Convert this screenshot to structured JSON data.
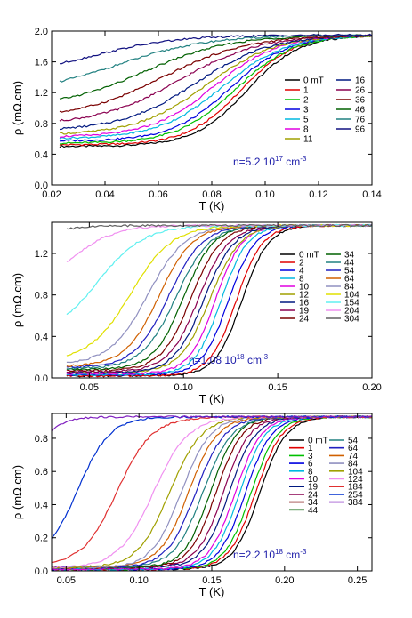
{
  "chart_data": [
    {
      "type": "line",
      "panel": "top",
      "xlabel": "T (K)",
      "ylabel": "ρ (mΩ.cm)",
      "xlim": [
        0.02,
        0.14
      ],
      "ylim": [
        0.0,
        2.0
      ],
      "xticks": [
        "0.02",
        "0.04",
        "0.06",
        "0.08",
        "0.10",
        "0.12",
        "0.14"
      ],
      "yticks": [
        "0.0",
        "0.4",
        "0.8",
        "1.2",
        "1.6",
        "2.0"
      ],
      "annotation": {
        "base": "n=5.2 10",
        "sup": "17",
        "tail": " cm",
        "sup2": "-3"
      },
      "legend_placement": "right",
      "x_start": 0.023,
      "x_end": 0.14,
      "rho_max": 1.95,
      "series": [
        {
          "name": "0 mT",
          "color": "#000000",
          "rho_low": 0.5,
          "tc": 0.093,
          "w": 0.01
        },
        {
          "name": "1",
          "color": "#e00000",
          "rho_low": 0.52,
          "tc": 0.091,
          "w": 0.01
        },
        {
          "name": "2",
          "color": "#00c000",
          "rho_low": 0.54,
          "tc": 0.089,
          "w": 0.011
        },
        {
          "name": "3",
          "color": "#0000e0",
          "rho_low": 0.57,
          "tc": 0.087,
          "w": 0.011
        },
        {
          "name": "5",
          "color": "#00b8e0",
          "rho_low": 0.6,
          "tc": 0.084,
          "w": 0.012
        },
        {
          "name": "8",
          "color": "#e000e0",
          "rho_low": 0.62,
          "tc": 0.081,
          "w": 0.012
        },
        {
          "name": "11",
          "color": "#a0a000",
          "rho_low": 0.65,
          "tc": 0.078,
          "w": 0.013
        },
        {
          "name": "16",
          "color": "#001880",
          "rho_low": 0.7,
          "tc": 0.074,
          "w": 0.014
        },
        {
          "name": "26",
          "color": "#8a0050",
          "rho_low": 0.78,
          "tc": 0.068,
          "w": 0.015
        },
        {
          "name": "36",
          "color": "#7a0000",
          "rho_low": 0.86,
          "tc": 0.062,
          "w": 0.016
        },
        {
          "name": "46",
          "color": "#006000",
          "rho_low": 1.0,
          "tc": 0.055,
          "w": 0.016
        },
        {
          "name": "76",
          "color": "#208080",
          "rho_low": 1.18,
          "tc": 0.045,
          "w": 0.017
        },
        {
          "name": "96",
          "color": "#101080",
          "rho_low": 1.4,
          "tc": 0.035,
          "w": 0.016
        }
      ]
    },
    {
      "type": "line",
      "panel": "middle",
      "xlabel": "T (K)",
      "ylabel": "ρ (mΩ.cm)",
      "xlim": [
        0.03,
        0.2
      ],
      "ylim": [
        0.0,
        1.5
      ],
      "xticks": [
        "0.05",
        "0.10",
        "0.15",
        "0.20"
      ],
      "xtick_values": [
        0.05,
        0.1,
        0.15,
        0.2
      ],
      "yticks": [
        "0.0",
        "0.4",
        "0.8",
        "1.2"
      ],
      "ytick_values": [
        0.0,
        0.4,
        0.8,
        1.2
      ],
      "annotation": {
        "base": "n=1.08 10",
        "sup": "18",
        "tail": " cm",
        "sup2": "-3"
      },
      "legend_placement": "right",
      "x_start": 0.038,
      "x_end": 0.2,
      "rho_max": 1.47,
      "series": [
        {
          "name": "0 mT",
          "color": "#000000",
          "rho_low": 0.02,
          "tc": 0.131,
          "w": 0.007
        },
        {
          "name": "2",
          "color": "#e00000",
          "rho_low": 0.02,
          "tc": 0.128,
          "w": 0.007
        },
        {
          "name": "4",
          "color": "#0000e0",
          "rho_low": 0.03,
          "tc": 0.124,
          "w": 0.007
        },
        {
          "name": "8",
          "color": "#00b8e0",
          "rho_low": 0.03,
          "tc": 0.12,
          "w": 0.007
        },
        {
          "name": "10",
          "color": "#e000e0",
          "rho_low": 0.04,
          "tc": 0.117,
          "w": 0.007
        },
        {
          "name": "12",
          "color": "#a0a000",
          "rho_low": 0.05,
          "tc": 0.114,
          "w": 0.008
        },
        {
          "name": "16",
          "color": "#001880",
          "rho_low": 0.05,
          "tc": 0.111,
          "w": 0.008
        },
        {
          "name": "19",
          "color": "#8a0050",
          "rho_low": 0.06,
          "tc": 0.108,
          "w": 0.008
        },
        {
          "name": "24",
          "color": "#7a0000",
          "rho_low": 0.07,
          "tc": 0.104,
          "w": 0.008
        },
        {
          "name": "34",
          "color": "#006000",
          "rho_low": 0.08,
          "tc": 0.1,
          "w": 0.008
        },
        {
          "name": "44",
          "color": "#208080",
          "rho_low": 0.09,
          "tc": 0.096,
          "w": 0.009
        },
        {
          "name": "54",
          "color": "#2020c0",
          "rho_low": 0.1,
          "tc": 0.092,
          "w": 0.009
        },
        {
          "name": "64",
          "color": "#d06000",
          "rho_low": 0.11,
          "tc": 0.087,
          "w": 0.009
        },
        {
          "name": "84",
          "color": "#9090c0",
          "rho_low": 0.13,
          "tc": 0.081,
          "w": 0.01
        },
        {
          "name": "104",
          "color": "#e0e000",
          "rho_low": 0.16,
          "tc": 0.072,
          "w": 0.011
        },
        {
          "name": "154",
          "color": "#60f0f0",
          "rho_low": 0.4,
          "tc": 0.055,
          "w": 0.012
        },
        {
          "name": "204",
          "color": "#f090f0",
          "rho_low": 0.9,
          "tc": 0.043,
          "w": 0.011
        },
        {
          "name": "304",
          "color": "#606060",
          "rho_low": 1.36,
          "tc": 0.03,
          "w": 0.01
        }
      ]
    },
    {
      "type": "line",
      "panel": "bottom",
      "xlabel": "T (K)",
      "ylabel": "ρ (mΩ.cm)",
      "xlim": [
        0.04,
        0.26
      ],
      "ylim": [
        0.0,
        0.95
      ],
      "xticks": [
        "0.05",
        "0.10",
        "0.15",
        "0.20",
        "0.25"
      ],
      "xtick_values": [
        0.05,
        0.1,
        0.15,
        0.2,
        0.25
      ],
      "yticks": [
        "0.0",
        "0.2",
        "0.4",
        "0.6",
        "0.8"
      ],
      "ytick_values": [
        0.0,
        0.2,
        0.4,
        0.6,
        0.8
      ],
      "annotation": {
        "base": "n=2.2 10",
        "sup": "18",
        "tail": " cm",
        "sup2": "-3"
      },
      "legend_placement": "right",
      "x_start": 0.04,
      "x_end": 0.26,
      "rho_max": 0.93,
      "series": [
        {
          "name": "0 mT",
          "color": "#000000",
          "rho_low": 0.01,
          "tc": 0.183,
          "w": 0.009
        },
        {
          "name": "1",
          "color": "#e00000",
          "rho_low": 0.01,
          "tc": 0.18,
          "w": 0.009
        },
        {
          "name": "3",
          "color": "#00c000",
          "rho_low": 0.01,
          "tc": 0.177,
          "w": 0.009
        },
        {
          "name": "6",
          "color": "#0000e0",
          "rho_low": 0.01,
          "tc": 0.173,
          "w": 0.009
        },
        {
          "name": "8",
          "color": "#00b8e0",
          "rho_low": 0.01,
          "tc": 0.169,
          "w": 0.009
        },
        {
          "name": "10",
          "color": "#e000e0",
          "rho_low": 0.01,
          "tc": 0.166,
          "w": 0.009
        },
        {
          "name": "19",
          "color": "#001880",
          "rho_low": 0.02,
          "tc": 0.162,
          "w": 0.009
        },
        {
          "name": "24",
          "color": "#8a0050",
          "rho_low": 0.02,
          "tc": 0.158,
          "w": 0.009
        },
        {
          "name": "34",
          "color": "#7a0000",
          "rho_low": 0.02,
          "tc": 0.153,
          "w": 0.009
        },
        {
          "name": "44",
          "color": "#006000",
          "rho_low": 0.02,
          "tc": 0.149,
          "w": 0.009
        },
        {
          "name": "54",
          "color": "#208080",
          "rho_low": 0.02,
          "tc": 0.144,
          "w": 0.01
        },
        {
          "name": "64",
          "color": "#2020c0",
          "rho_low": 0.02,
          "tc": 0.139,
          "w": 0.01
        },
        {
          "name": "74",
          "color": "#d06000",
          "rho_low": 0.02,
          "tc": 0.134,
          "w": 0.01
        },
        {
          "name": "84",
          "color": "#9090c0",
          "rho_low": 0.02,
          "tc": 0.129,
          "w": 0.01
        },
        {
          "name": "104",
          "color": "#a0a000",
          "rho_low": 0.02,
          "tc": 0.121,
          "w": 0.011
        },
        {
          "name": "124",
          "color": "#f090f0",
          "rho_low": 0.02,
          "tc": 0.11,
          "w": 0.012
        },
        {
          "name": "184",
          "color": "#e03030",
          "rho_low": 0.03,
          "tc": 0.085,
          "w": 0.012
        },
        {
          "name": "254",
          "color": "#0030d0",
          "rho_low": 0.05,
          "tc": 0.058,
          "w": 0.011
        },
        {
          "name": "384",
          "color": "#8020c0",
          "rho_low": 0.7,
          "tc": 0.035,
          "w": 0.008
        }
      ]
    }
  ]
}
